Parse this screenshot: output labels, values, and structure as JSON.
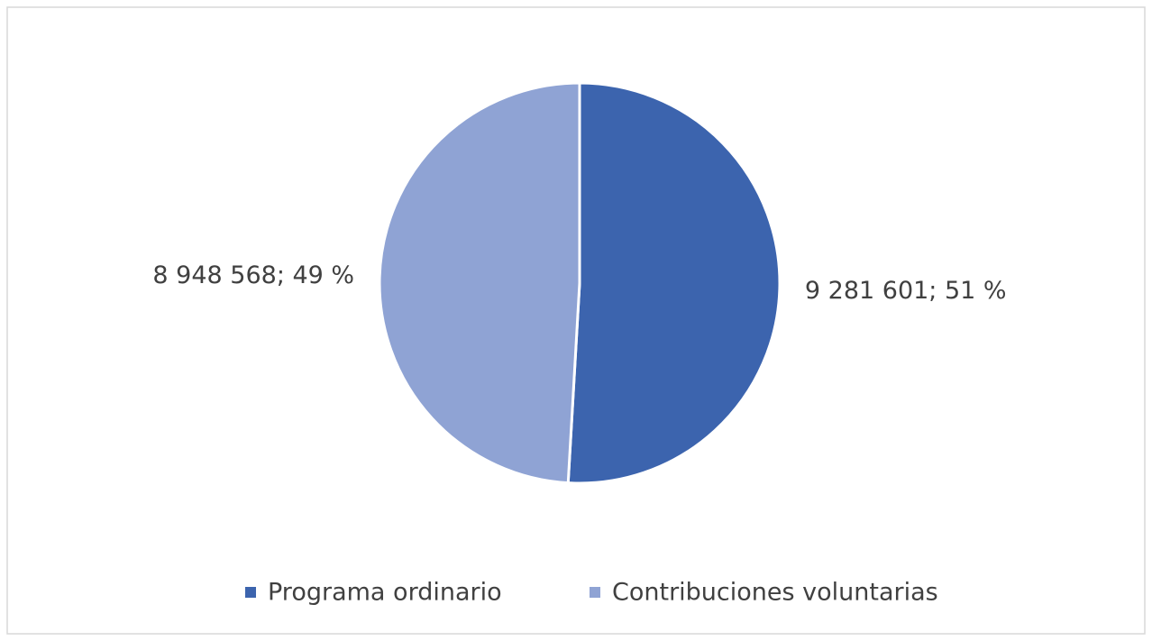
{
  "chart_data": {
    "type": "pie",
    "categories": [
      "Programa ordinario",
      "Contribuciones voluntarias"
    ],
    "values": [
      9281601,
      8948568
    ],
    "value_labels": [
      "9 281 601; 51 %",
      "8 948 568; 49 %"
    ],
    "colors": [
      "#3c64ae",
      "#8fa3d4"
    ],
    "legend": "bottom"
  }
}
